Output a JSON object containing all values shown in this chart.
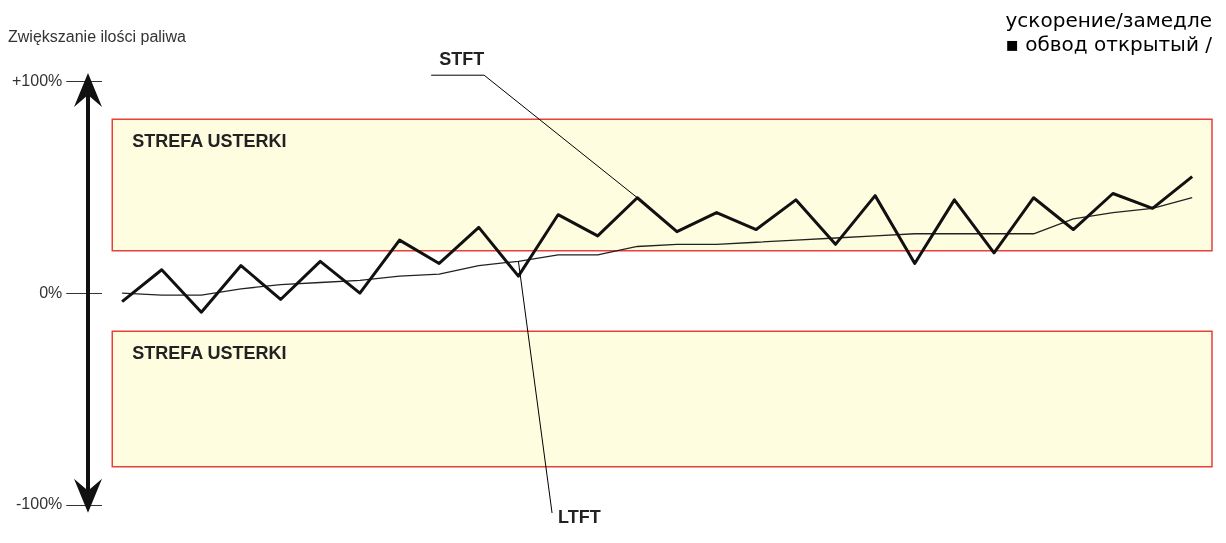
{
  "chart_data": {
    "type": "line",
    "title": "Zwiększanie ilości paliwa",
    "categories": [
      null,
      null,
      null,
      null,
      null,
      null,
      null,
      null,
      null,
      null,
      null,
      null,
      null,
      null,
      null,
      null,
      null,
      null,
      null,
      null,
      null,
      null,
      null,
      null,
      null,
      null,
      null,
      null
    ],
    "series": [
      {
        "name": "STFT",
        "color": "#111111",
        "values": [
          -4,
          11,
          -9,
          13,
          -3,
          15,
          0,
          25,
          14,
          31,
          8,
          37,
          27,
          45,
          29,
          38,
          30,
          44,
          23,
          46,
          14,
          44,
          19,
          45,
          30,
          47,
          40,
          55
        ]
      },
      {
        "name": "LTFT",
        "color": "#222222",
        "values": [
          0,
          -1,
          -1,
          2,
          4,
          5,
          6,
          8,
          9,
          13,
          15,
          18,
          18,
          22,
          23,
          23,
          24,
          25,
          26,
          27,
          28,
          28,
          28,
          28,
          35,
          38,
          40,
          45
        ]
      }
    ],
    "ylim": [
      -100,
      100
    ],
    "yticks": [
      {
        "value": 100,
        "label": "+100%"
      },
      {
        "value": 0,
        "label": "0%"
      },
      {
        "value": -100,
        "label": "-100%"
      }
    ],
    "bands": [
      {
        "axis": "y",
        "from": 20,
        "to": 82,
        "label": "STREFA USTERKI",
        "color": "#fffde0"
      },
      {
        "axis": "y",
        "from": -82,
        "to": -18,
        "label": "STREFA USTERKI",
        "color": "#fffde0"
      }
    ],
    "annotations": [
      "ускорение/замедле",
      "▪ обвод открытый /"
    ],
    "grid": false,
    "legend": false,
    "marker": "none",
    "line_style": "solid"
  }
}
